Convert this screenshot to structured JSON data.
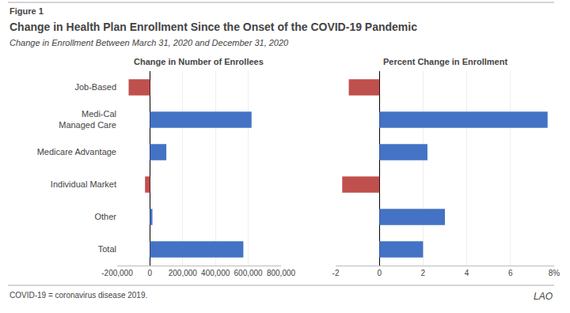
{
  "title": "Change in Health Plan Enrollment Since the Onset of the COVID-19 Pandemic",
  "subtitle": "Change in Enrollment Between March 31, 2020 and December 31, 2020",
  "annotations": [
    "Figure 1",
    "COVID-19 = coronavirus disease 2019.",
    "LAO"
  ],
  "chart_data": [
    {
      "type": "bar",
      "orientation": "horizontal",
      "title": "Change in Number of Enrollees",
      "categories": [
        "Total",
        "Other",
        "Individual Market",
        "Medicare Advantage",
        "Medi-Cal\nManaged Care",
        "Job-Based"
      ],
      "values": [
        570000,
        15000,
        -30000,
        100000,
        620000,
        -130000
      ],
      "colors": [
        "#4472c4",
        "#4472c4",
        "#c0504d",
        "#4472c4",
        "#4472c4",
        "#c0504d"
      ],
      "xlim": [
        -200000,
        800000
      ],
      "xticks": [
        {
          "value": -200000,
          "label": "-200,000"
        },
        0,
        {
          "value": 200000,
          "label": "200,000"
        },
        {
          "value": 400000,
          "label": "400,000"
        },
        {
          "value": 600000,
          "label": "600,000"
        },
        {
          "value": 800000,
          "label": "800,000"
        }
      ],
      "grid": true
    },
    {
      "type": "bar",
      "orientation": "horizontal",
      "title": "Percent Change in Enrollment",
      "categories": [
        "Total",
        "Other",
        "Individual Market",
        "Medicare Advantage",
        "Medi-Cal\nManaged Care",
        "Job-Based"
      ],
      "values": [
        2.0,
        3.0,
        -1.7,
        2.2,
        7.7,
        -1.4
      ],
      "colors": [
        "#4472c4",
        "#4472c4",
        "#c0504d",
        "#4472c4",
        "#4472c4",
        "#c0504d"
      ],
      "xlim": [
        -2,
        8
      ],
      "xticks": [
        -2,
        0,
        2,
        4,
        6,
        {
          "value": 8,
          "label": "8%"
        }
      ],
      "grid": true,
      "tick_labels": "x"
    }
  ]
}
